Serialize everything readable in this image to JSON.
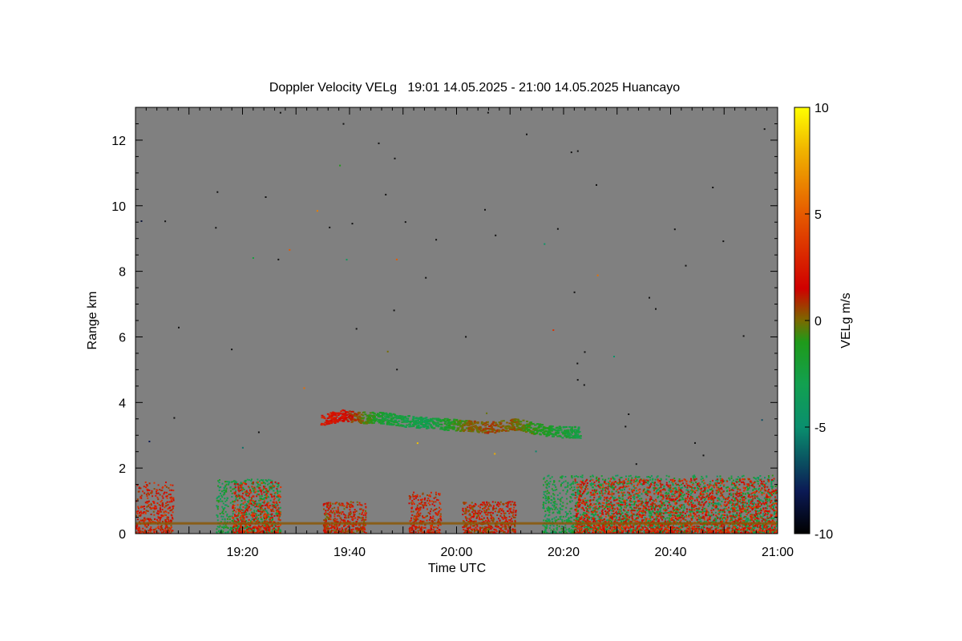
{
  "chart_data": {
    "type": "heatmap",
    "title": "Doppler Velocity VELg   19:01 14.05.2025 - 21:00 14.05.2025 Huancayo",
    "xlabel": "Time UTC",
    "ylabel": "Range km",
    "x_tick_labels": [
      "19:20",
      "19:40",
      "20:00",
      "20:20",
      "20:40",
      "21:00"
    ],
    "x_tick_minutes": [
      20,
      40,
      60,
      80,
      100,
      120
    ],
    "xlim_minutes": [
      0,
      120
    ],
    "y_ticks": [
      0,
      2,
      4,
      6,
      8,
      10,
      12
    ],
    "ylim": [
      0,
      13
    ],
    "background_color": "#808080",
    "colorbar": {
      "label": "VELg m/s",
      "range": [
        -10,
        10
      ],
      "ticks": [
        10,
        5,
        0,
        -5,
        -10
      ],
      "tick_labels": [
        "10",
        "5",
        "0",
        "-5",
        "-10"
      ],
      "stops": [
        {
          "v": -10,
          "color": "#000000"
        },
        {
          "v": -8,
          "color": "#0b1a55"
        },
        {
          "v": -5,
          "color": "#0a8f6e"
        },
        {
          "v": -3,
          "color": "#12a050"
        },
        {
          "v": -1,
          "color": "#1f9a1a"
        },
        {
          "v": 0,
          "color": "#7a6a00"
        },
        {
          "v": 1.5,
          "color": "#d00000"
        },
        {
          "v": 5,
          "color": "#e65a00"
        },
        {
          "v": 8,
          "color": "#f0b400"
        },
        {
          "v": 10,
          "color": "#ffff00"
        }
      ]
    },
    "echo_regions": [
      {
        "t_start": 0,
        "t_end": 7,
        "range_top": 1.6,
        "velocity": 2.0
      },
      {
        "t_start": 15,
        "t_end": 27,
        "range_top": 1.7,
        "velocity": -2.5
      },
      {
        "t_start": 18,
        "t_end": 27,
        "range_top": 1.6,
        "velocity": 2.5
      },
      {
        "t_start": 35,
        "t_end": 43,
        "range_top": 1.0,
        "velocity": 1.5
      },
      {
        "t_start": 51,
        "t_end": 57,
        "range_top": 1.3,
        "velocity": 2.0
      },
      {
        "t_start": 61,
        "t_end": 71,
        "range_top": 1.0,
        "velocity": 1.5
      },
      {
        "t_start": 76,
        "t_end": 120,
        "range_top": 1.8,
        "velocity": -2.5
      },
      {
        "t_start": 82,
        "t_end": 120,
        "range_top": 1.7,
        "velocity": 2.5
      }
    ],
    "cloud_layer": [
      {
        "t": 34.5,
        "range": 3.48,
        "velocity": 2.5
      },
      {
        "t": 38.5,
        "range": 3.62,
        "velocity": 2.0
      },
      {
        "t": 42,
        "range": 3.56,
        "velocity": 0.0
      },
      {
        "t": 46,
        "range": 3.55,
        "velocity": -2.0
      },
      {
        "t": 50,
        "range": 3.45,
        "velocity": -2.5
      },
      {
        "t": 54,
        "range": 3.4,
        "velocity": -3.0
      },
      {
        "t": 58,
        "range": 3.35,
        "velocity": -1.5
      },
      {
        "t": 62,
        "range": 3.3,
        "velocity": 0.0
      },
      {
        "t": 66,
        "range": 3.25,
        "velocity": 0.5
      },
      {
        "t": 71,
        "range": 3.35,
        "velocity": 0.0
      },
      {
        "t": 75,
        "range": 3.2,
        "velocity": -1.0
      },
      {
        "t": 79,
        "range": 3.12,
        "velocity": -2.0
      },
      {
        "t": 83,
        "range": 3.1,
        "velocity": -2.5
      }
    ]
  }
}
